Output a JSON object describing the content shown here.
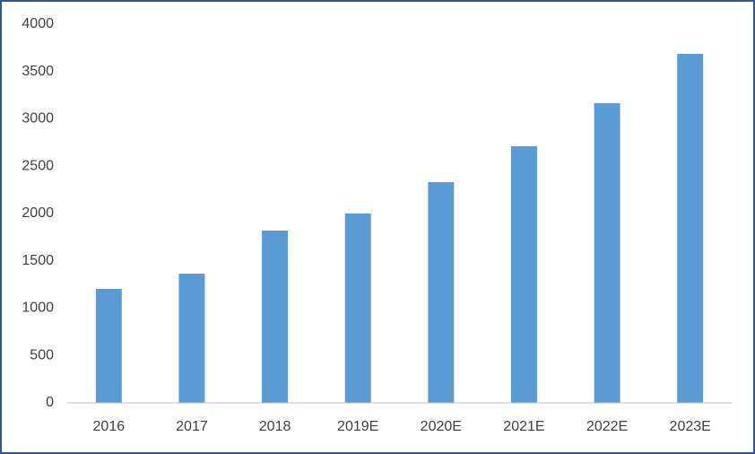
{
  "chart_data": {
    "type": "bar",
    "categories": [
      "2016",
      "2017",
      "2018",
      "2019E",
      "2020E",
      "2021E",
      "2022E",
      "2023E"
    ],
    "values": [
      1204,
      1365,
      1820,
      2000,
      2332,
      2711,
      3166,
      3687
    ],
    "color": "#5b9bd5",
    "ylim": [
      0,
      4000
    ],
    "yticks": [
      0,
      500,
      1000,
      1500,
      2000,
      2500,
      3000,
      3500,
      4000
    ],
    "grid": false
  }
}
